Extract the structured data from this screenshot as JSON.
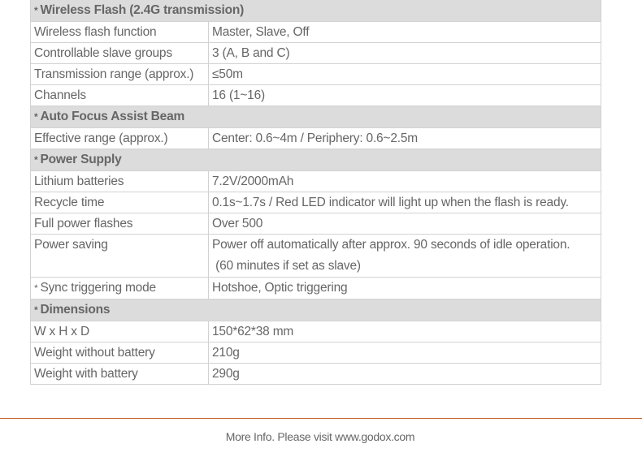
{
  "sections": [
    {
      "title": "Wireless Flash (2.4G transmission)",
      "rows": [
        {
          "label": "Wireless flash function",
          "value": "Master, Slave, Off"
        },
        {
          "label": "Controllable slave groups",
          "value": "3 (A, B and C)"
        },
        {
          "label": "Transmission range (approx.)",
          "value": "≤50m"
        },
        {
          "label": "Channels",
          "value": "16 (1~16)"
        }
      ]
    },
    {
      "title": "Auto Focus Assist Beam",
      "rows": [
        {
          "label": "Effective range (approx.)",
          "value": "Center: 0.6~4m / Periphery: 0.6~2.5m"
        }
      ]
    },
    {
      "title": "Power Supply",
      "rows": [
        {
          "label": "Lithium batteries",
          "value": "7.2V/2000mAh"
        },
        {
          "label": "Recycle time",
          "value": "0.1s~1.7s / Red LED indicator will light up when the flash is ready."
        },
        {
          "label": "Full power flashes",
          "value": "Over 500"
        },
        {
          "label": "Power saving",
          "value": "Power off automatically after approx. 90 seconds of idle operation.",
          "value2": " (60 minutes if set as slave)"
        },
        {
          "label": "Sync triggering mode",
          "value": "Hotshoe, Optic triggering"
        }
      ]
    },
    {
      "title": "Dimensions",
      "rows": [
        {
          "label": "W x H x D",
          "value": "150*62*38 mm"
        },
        {
          "label": "Weight without battery",
          "value": "210g"
        },
        {
          "label": "Weight with battery",
          "value": "290g"
        }
      ]
    }
  ],
  "bullet": "*",
  "footer": "More Info. Please visit www.godox.com",
  "colors": {
    "section_bg": "#dddcdc",
    "rule": "#c8642a",
    "text": "#666666"
  }
}
